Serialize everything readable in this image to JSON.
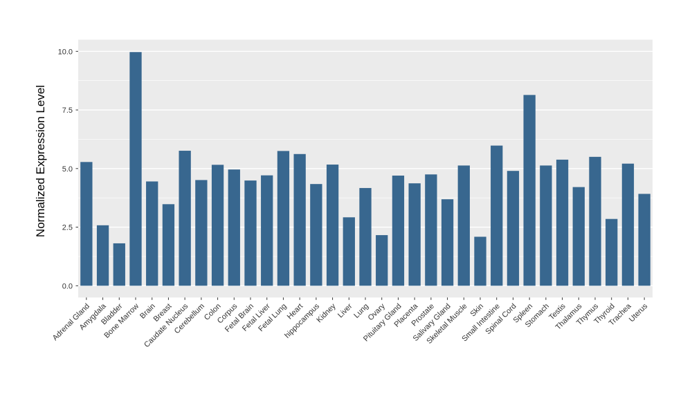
{
  "chart_data": {
    "type": "bar",
    "title": "",
    "xlabel": "",
    "ylabel": "Normalized Expression Level",
    "ylim": [
      0,
      10.5
    ],
    "yticks": [
      0.0,
      2.5,
      5.0,
      7.5,
      10.0
    ],
    "ytick_labels": [
      "0.0",
      "2.5",
      "5.0",
      "7.5",
      "10.0"
    ],
    "minor_gridlines": [
      1.25,
      3.75,
      6.25,
      8.75
    ],
    "grid": "on",
    "legend": "none",
    "categories": [
      "Adrenal Gland",
      "Amygdala",
      "Bladder",
      "Bone Marrow",
      "Brain",
      "Breast",
      "Caudate Nucleus",
      "Cerebellum",
      "Colon",
      "Corpus",
      "Fetal Brain",
      "Fetal Liver",
      "Fetal Lung",
      "Heart",
      "hippocampus",
      "Kidney",
      "Liver",
      "Lung",
      "Ovary",
      "Pituitary Gland",
      "Placenta",
      "Prostate",
      "Salivary Gland",
      "Skeletal Muscle",
      "Skin",
      "Small Intestine",
      "Spinal Cord",
      "Spleen",
      "Stomach",
      "Testis",
      "Thalamus",
      "Thymus",
      "Thyroid",
      "Trachea",
      "Uterus"
    ],
    "values": [
      5.28,
      2.58,
      1.81,
      9.97,
      4.45,
      3.48,
      5.76,
      4.51,
      5.16,
      4.96,
      4.49,
      4.71,
      5.75,
      5.62,
      4.34,
      5.17,
      2.92,
      4.17,
      2.16,
      4.7,
      4.37,
      4.75,
      3.69,
      5.13,
      2.09,
      5.98,
      4.9,
      8.14,
      5.13,
      5.38,
      4.21,
      5.5,
      2.85,
      5.21,
      3.92
    ],
    "colors": {
      "bar_fill": "#38678F",
      "panel_background": "#EBEBEB",
      "gridline": "#FFFFFF",
      "axis_text": "#333333",
      "axis_title": "#000000",
      "tick_mark": "#333333",
      "page_background": "#FFFFFF"
    }
  }
}
